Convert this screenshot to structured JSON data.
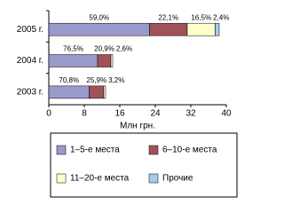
{
  "chart_data": {
    "type": "stacked-bar-horizontal",
    "x_label": "Млн грн.",
    "categories": [
      "2005 г.",
      "2004 г.",
      "2003 г."
    ],
    "series": [
      {
        "name": "1–5-е места",
        "color": "#9999cc",
        "values": [
          22.7,
          11.0,
          9.1
        ],
        "share_labels": [
          "59,0%",
          "76,5%",
          "70,8%"
        ]
      },
      {
        "name": "6–10-е места",
        "color": "#a0525a",
        "values": [
          8.5,
          3.0,
          3.3
        ],
        "share_labels": [
          "22,1%",
          "20,9%",
          "25,9%"
        ]
      },
      {
        "name": "11–20-е места",
        "color": "#ffffcc",
        "values": [
          6.3,
          0.4,
          0.4
        ],
        "share_labels": [
          "16,5%",
          "2,6%",
          "3,2%"
        ]
      },
      {
        "name": "Прочие",
        "color": "#a6caf0",
        "values": [
          0.9,
          null,
          null
        ],
        "share_labels": [
          "2,4%",
          null,
          null
        ]
      }
    ],
    "xlim": [
      0,
      40
    ],
    "xticks": [
      0,
      8,
      16,
      24,
      32,
      40
    ]
  }
}
